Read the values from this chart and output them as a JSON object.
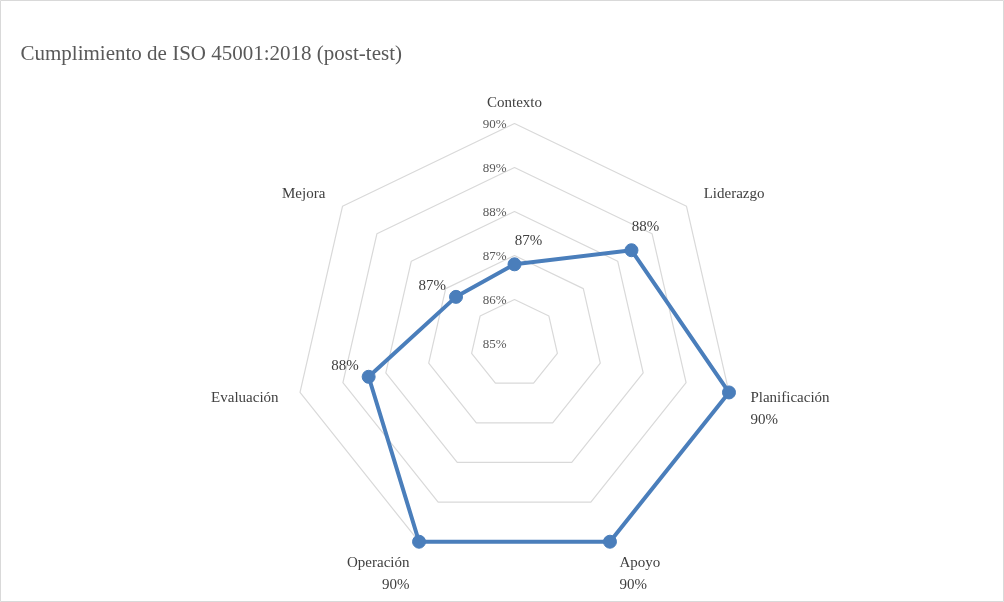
{
  "chart_data": {
    "type": "radar",
    "title": "Cumplimiento de ISO 45001:2018 (post-test)",
    "categories": [
      "Contexto",
      "Liderazgo",
      "Planificación",
      "Apoyo",
      "Operación",
      "Evaluación",
      "Mejora"
    ],
    "series": [
      {
        "color": "#4a7ebb",
        "values": [
          86.8,
          88.4,
          90,
          90,
          90,
          88.4,
          86.7
        ],
        "value_labels": [
          "87%",
          "88%",
          "90%",
          "90%",
          "90%",
          "88%",
          "87%"
        ]
      }
    ],
    "ylim": [
      85,
      90
    ],
    "yticks": [
      {
        "value": 85,
        "label": "85%"
      },
      {
        "value": 86,
        "label": "86%"
      },
      {
        "value": 87,
        "label": "87%"
      },
      {
        "value": 88,
        "label": "88%"
      },
      {
        "value": 89,
        "label": "89%"
      },
      {
        "value": 90,
        "label": "90%"
      }
    ],
    "grid": true,
    "marker": "circle"
  }
}
